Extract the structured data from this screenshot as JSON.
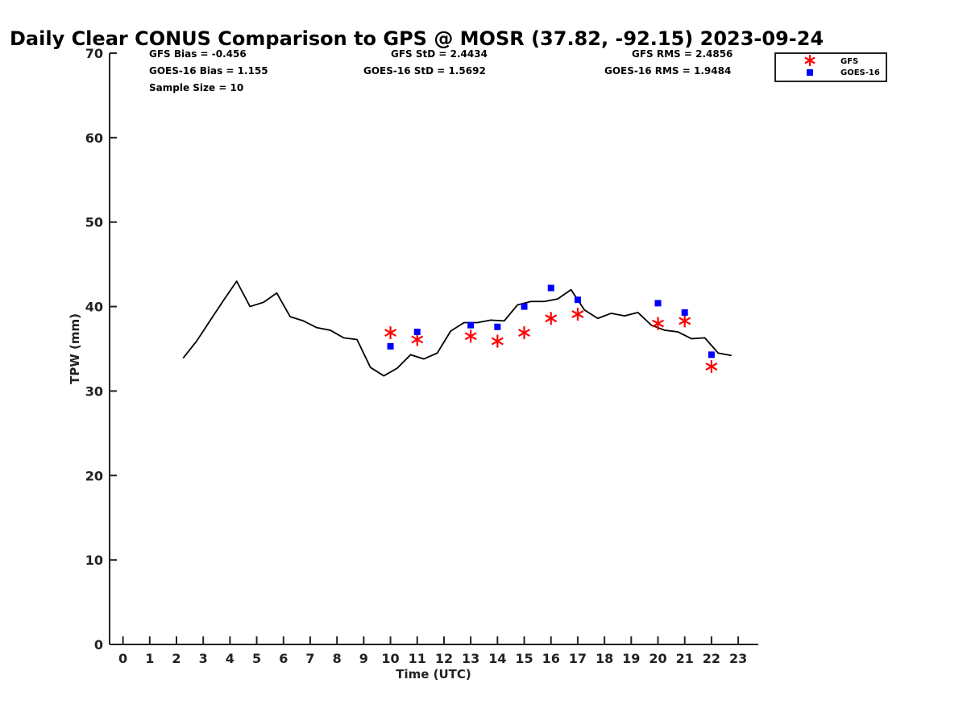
{
  "chart_data": {
    "type": "scatter",
    "title": "Daily Clear CONUS Comparison to GPS @ MOSR (37.82, -92.15) 2023-09-24",
    "xlabel": "Time (UTC)",
    "ylabel": "TPW (mm)",
    "xlim": [
      -0.5,
      23.75
    ],
    "ylim": [
      0,
      70
    ],
    "xticks": [
      0,
      1,
      2,
      3,
      4,
      5,
      6,
      7,
      8,
      9,
      10,
      11,
      12,
      13,
      14,
      15,
      16,
      17,
      18,
      19,
      20,
      21,
      22,
      23
    ],
    "yticks": [
      0,
      10,
      20,
      30,
      40,
      50,
      60,
      70
    ],
    "grid": false,
    "legend_position": "top-right",
    "series": [
      {
        "name": "GPS",
        "kind": "line",
        "color": "#000000",
        "x": [
          2.25,
          2.75,
          3.25,
          3.75,
          4.25,
          4.75,
          5.25,
          5.75,
          6.25,
          6.75,
          7.25,
          7.75,
          8.25,
          8.75,
          9.25,
          9.75,
          10.25,
          10.75,
          11.25,
          11.75,
          12.25,
          12.75,
          13.25,
          13.75,
          14.25,
          14.75,
          15.25,
          15.75,
          16.25,
          16.75,
          17.25,
          17.75,
          18.25,
          18.75,
          19.25,
          19.75,
          20.25,
          20.75,
          21.25,
          21.75,
          22.25,
          22.75
        ],
        "y": [
          33.9,
          35.9,
          38.3,
          40.7,
          43.0,
          40.0,
          40.5,
          41.6,
          38.8,
          38.3,
          37.5,
          37.2,
          36.3,
          36.1,
          32.8,
          31.8,
          32.7,
          34.3,
          33.8,
          34.5,
          37.1,
          38.1,
          38.1,
          38.4,
          38.3,
          40.2,
          40.6,
          40.6,
          40.9,
          42.0,
          39.6,
          38.6,
          39.2,
          38.9,
          39.3,
          37.8,
          37.2,
          37.0,
          36.2,
          36.3,
          34.5,
          34.2
        ]
      },
      {
        "name": "GFS",
        "kind": "marker",
        "marker": "asterisk",
        "color": "#ff0000",
        "x": [
          10,
          11,
          13,
          14,
          15,
          16,
          17,
          20,
          21,
          22
        ],
        "y": [
          36.9,
          36.1,
          36.5,
          35.9,
          36.9,
          38.6,
          39.1,
          38.0,
          38.3,
          32.9
        ]
      },
      {
        "name": "GOES-16",
        "kind": "marker",
        "marker": "square",
        "color": "#0000ff",
        "x": [
          10,
          11,
          13,
          14,
          15,
          16,
          17,
          20,
          21,
          22
        ],
        "y": [
          35.3,
          37.0,
          37.8,
          37.6,
          40.0,
          42.2,
          40.8,
          40.4,
          39.3,
          34.3
        ]
      }
    ],
    "stats": {
      "gfs_bias": "GFS Bias = -0.456",
      "goes_bias": "GOES-16 Bias = 1.155",
      "sample_size": "Sample Size = 10",
      "gfs_std": "GFS StD = 2.4434",
      "goes_std": "GOES-16 StD = 1.5692",
      "gfs_rms": "GFS RMS = 2.4856",
      "goes_rms": "GOES-16 RMS = 1.9484"
    },
    "legend": {
      "gfs": "GFS",
      "goes": "GOES-16"
    }
  }
}
